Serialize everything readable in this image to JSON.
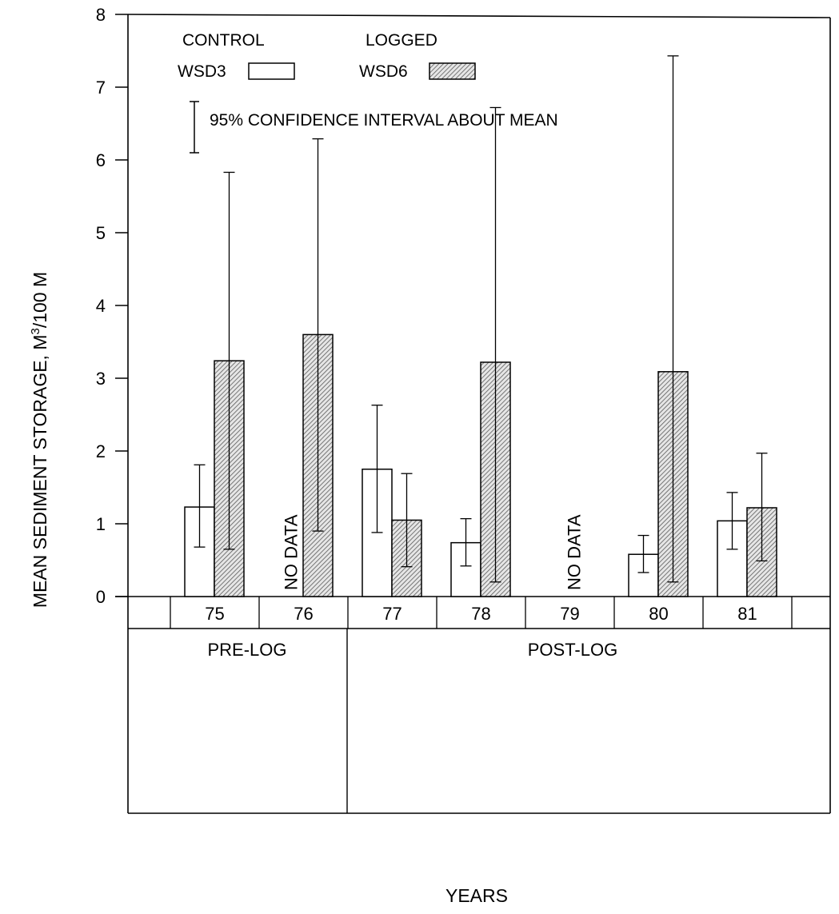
{
  "chart_data": {
    "type": "bar",
    "categories": [
      "75",
      "76",
      "77",
      "78",
      "79",
      "80",
      "81"
    ],
    "series": [
      {
        "name": "WSD3",
        "group": "CONTROL",
        "values": [
          1.23,
          null,
          1.75,
          0.74,
          null,
          0.58,
          1.04
        ],
        "ci_low": [
          0.68,
          null,
          0.88,
          0.42,
          null,
          0.33,
          0.65
        ],
        "ci_high": [
          1.81,
          null,
          2.63,
          1.07,
          null,
          0.84,
          1.43
        ]
      },
      {
        "name": "WSD6",
        "group": "LOGGED",
        "values": [
          3.24,
          3.6,
          1.05,
          3.22,
          null,
          3.09,
          1.22
        ],
        "ci_low": [
          0.65,
          0.9,
          0.41,
          0.2,
          null,
          0.2,
          0.49
        ],
        "ci_high": [
          5.83,
          6.29,
          1.69,
          6.72,
          null,
          7.43,
          1.97
        ]
      }
    ],
    "no_data": [
      {
        "category": "76",
        "series": "WSD3",
        "label": "NO DATA"
      },
      {
        "category": "79",
        "series": "both",
        "label": "NO DATA"
      }
    ],
    "periods": [
      {
        "label": "PRE-LOG",
        "categories": [
          "75",
          "76"
        ]
      },
      {
        "label": "POST-LOG",
        "categories": [
          "77",
          "78",
          "79",
          "80",
          "81"
        ]
      }
    ],
    "y_ticks": [
      "0",
      "1",
      "2",
      "3",
      "4",
      "5",
      "6",
      "7",
      "8"
    ],
    "ylim": [
      0,
      8
    ],
    "ylabel_main": "MEAN SEDIMENT STORAGE, M",
    "ylabel_sup": "3",
    "ylabel_tail": "/100 M",
    "xlabel": "YEARS",
    "legend": {
      "control_heading": "CONTROL",
      "logged_heading": "LOGGED",
      "control_item": "WSD3",
      "logged_item": "WSD6",
      "ci_text": "95% CONFIDENCE INTERVAL ABOUT MEAN"
    },
    "grid": false,
    "legend_position": "top-left",
    "colors": {
      "control_fill": "#ffffff",
      "logged_hatch": "#5a5a5a",
      "logged_bg": "#e6e6e6",
      "line": "#000000"
    }
  }
}
